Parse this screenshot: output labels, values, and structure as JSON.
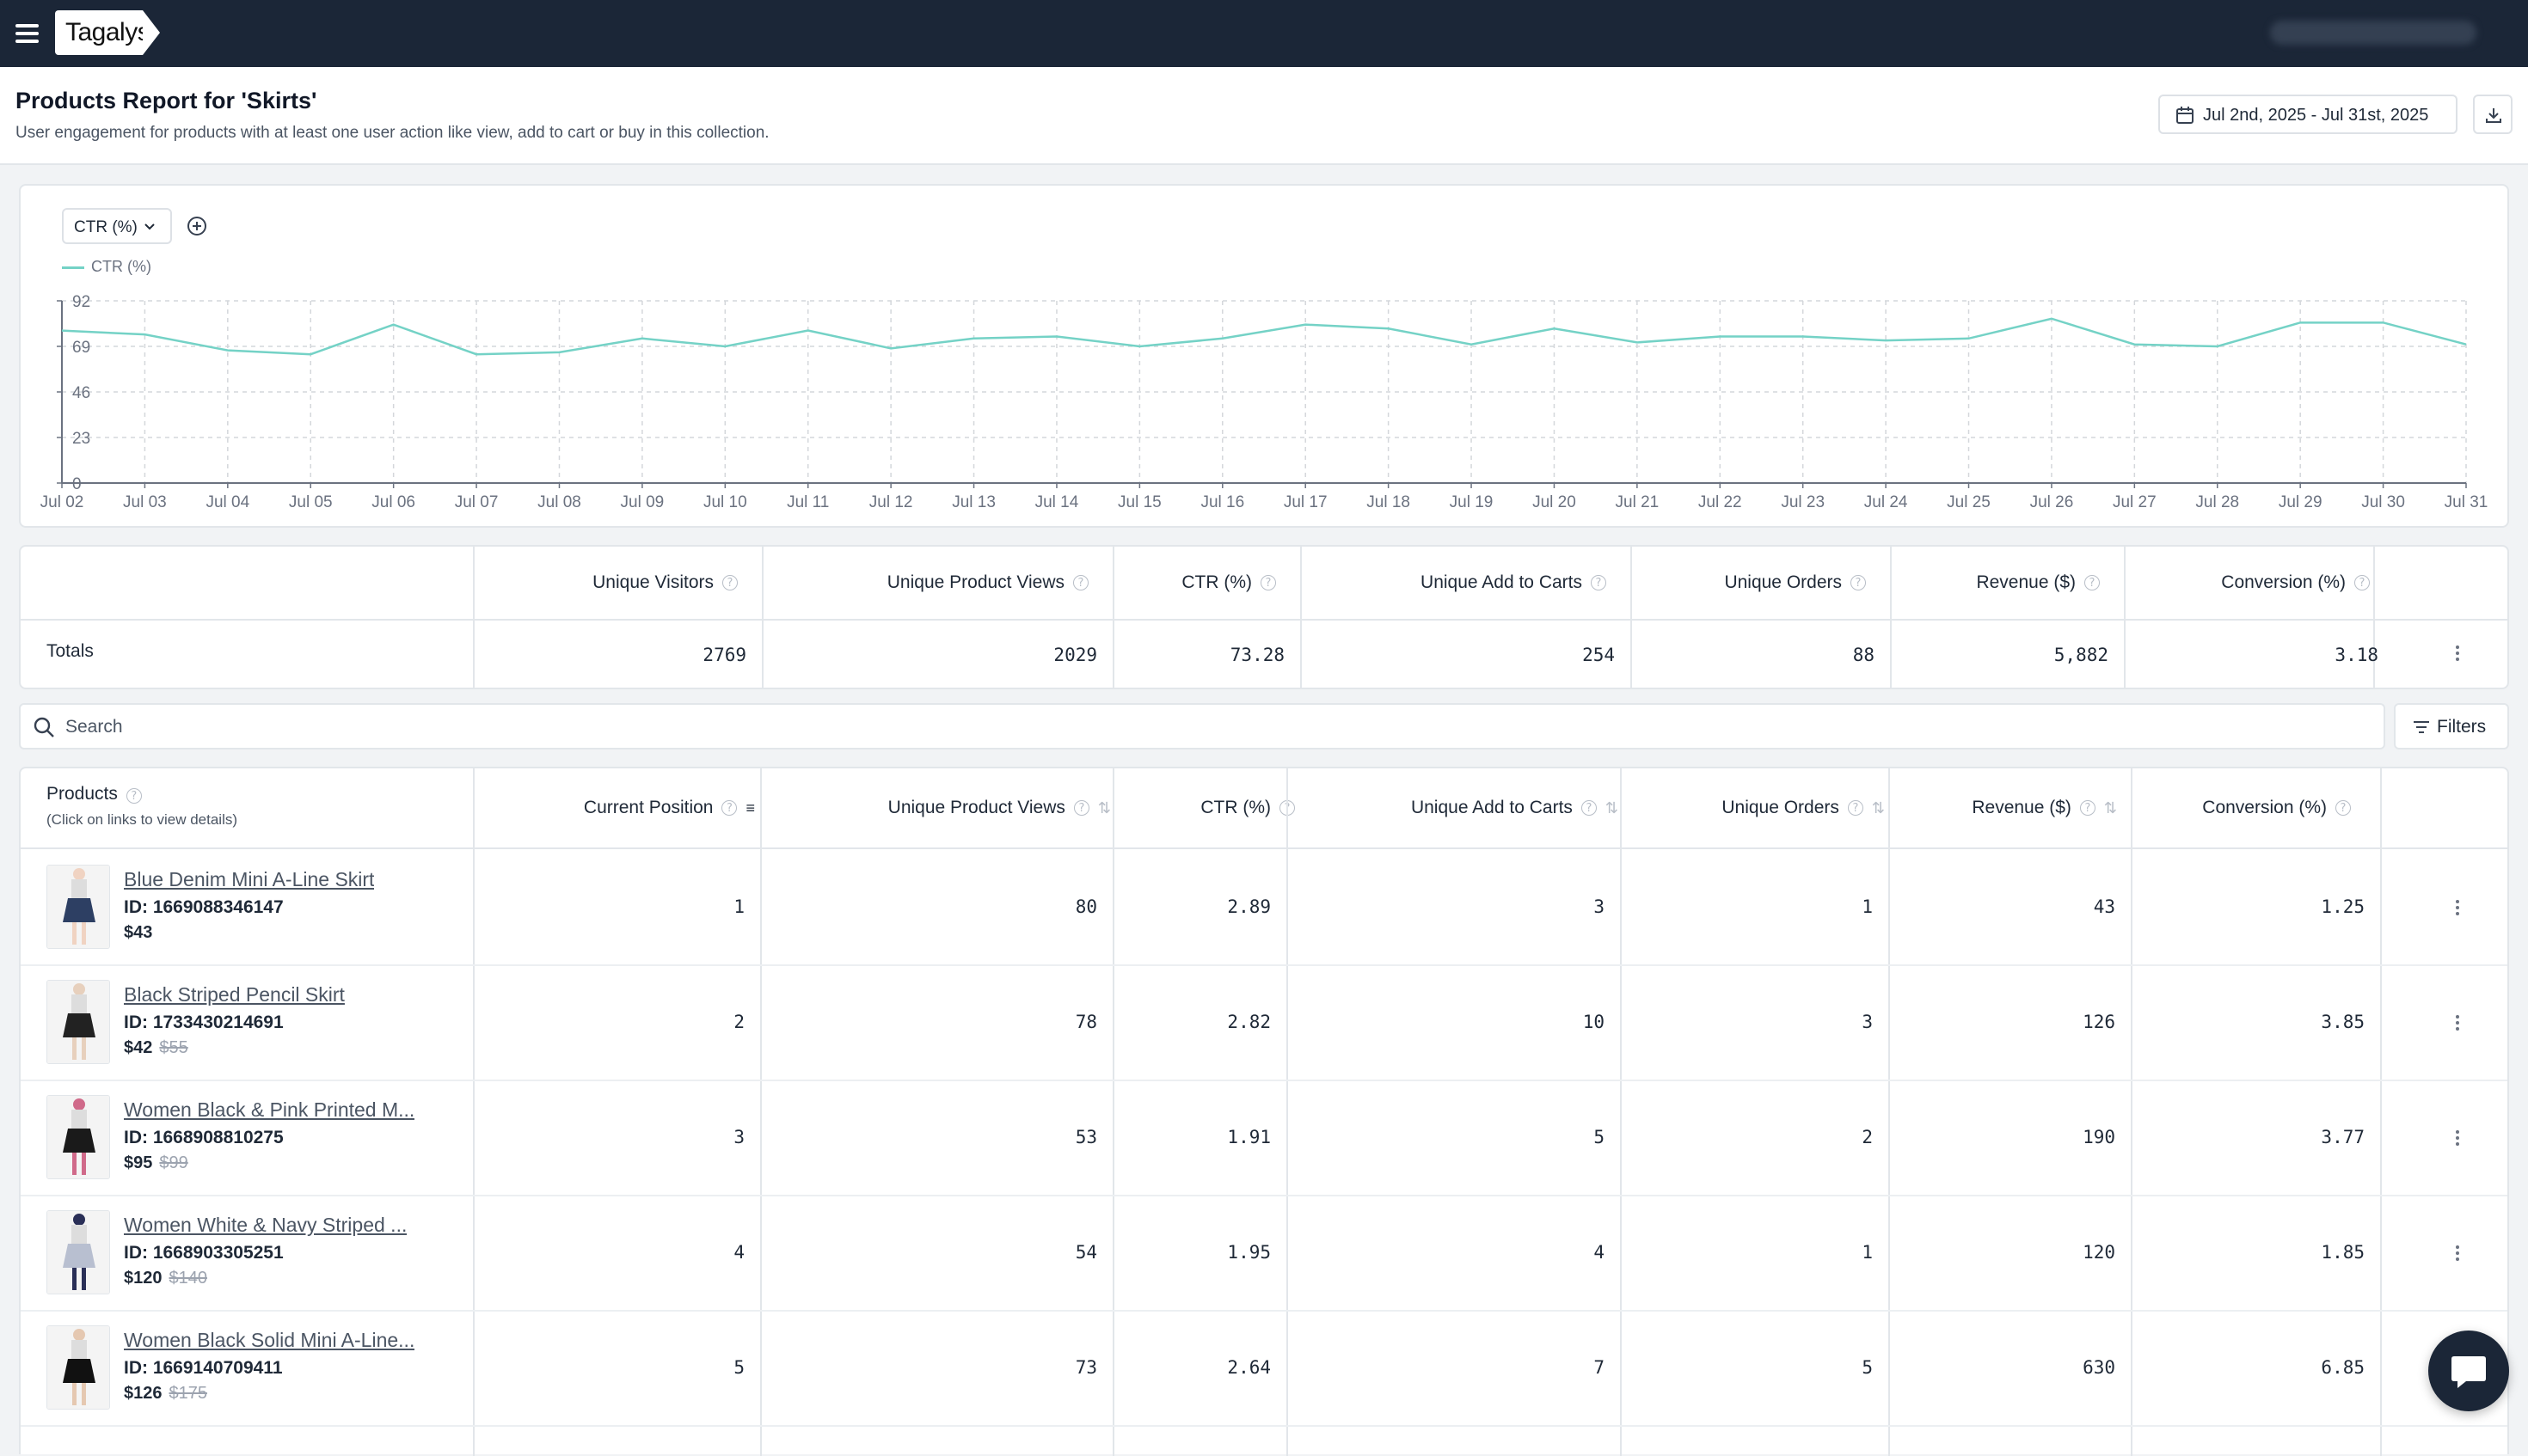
{
  "header": {
    "logo": "Tagalys"
  },
  "page": {
    "title": "Products Report for 'Skirts'",
    "subtitle": "User engagement for products with at least one user action like view, add to cart or buy in this collection.",
    "date_range": "Jul 2nd, 2025 - Jul 31st, 2025"
  },
  "chart": {
    "metric_select": "CTR (%)",
    "legend": "CTR (%)",
    "line_color": "#74d2c6"
  },
  "chart_data": {
    "type": "line",
    "categories": [
      "Jul 02",
      "Jul 03",
      "Jul 04",
      "Jul 05",
      "Jul 06",
      "Jul 07",
      "Jul 08",
      "Jul 09",
      "Jul 10",
      "Jul 11",
      "Jul 12",
      "Jul 13",
      "Jul 14",
      "Jul 15",
      "Jul 16",
      "Jul 17",
      "Jul 18",
      "Jul 19",
      "Jul 20",
      "Jul 21",
      "Jul 22",
      "Jul 23",
      "Jul 24",
      "Jul 25",
      "Jul 26",
      "Jul 27",
      "Jul 28",
      "Jul 29",
      "Jul 30",
      "Jul 31"
    ],
    "series": [
      {
        "name": "CTR (%)",
        "values": [
          77,
          75,
          67,
          65,
          80,
          65,
          66,
          73,
          69,
          77,
          68,
          73,
          74,
          69,
          73,
          80,
          78,
          70,
          78,
          71,
          74,
          74,
          72,
          73,
          83,
          70,
          69,
          81,
          81,
          70
        ]
      }
    ],
    "ylim": [
      0,
      92
    ],
    "yticks": [
      0,
      23,
      46,
      69,
      92
    ],
    "grid": true
  },
  "totals": {
    "headers": [
      "Unique Visitors",
      "Unique Product Views",
      "CTR (%)",
      "Unique Add to Carts",
      "Unique Orders",
      "Revenue ($)",
      "Conversion (%)"
    ],
    "label": "Totals",
    "values": [
      "2769",
      "2029",
      "73.28",
      "254",
      "88",
      "5,882",
      "3.18"
    ]
  },
  "search": {
    "placeholder": "Search",
    "value": ""
  },
  "filters_label": "Filters",
  "products": {
    "header_title": "Products",
    "header_sub": "(Click on links to view details)",
    "headers": [
      "Current Position",
      "Unique Product Views",
      "CTR (%)",
      "Unique Add to Carts",
      "Unique Orders",
      "Revenue ($)",
      "Conversion (%)"
    ],
    "rows": [
      {
        "name": "Blue Denim Mini A-Line Skirt",
        "id": "ID: 1669088346147",
        "price": "$43",
        "old_price": "",
        "position": "1",
        "views": "80",
        "ctr": "2.89",
        "atc": "3",
        "orders": "1",
        "revenue": "43",
        "conversion": "1.25"
      },
      {
        "name": "Black Striped Pencil Skirt",
        "id": "ID: 1733430214691",
        "price": "$42",
        "old_price": "$55",
        "position": "2",
        "views": "78",
        "ctr": "2.82",
        "atc": "10",
        "orders": "3",
        "revenue": "126",
        "conversion": "3.85"
      },
      {
        "name": "Women Black & Pink Printed M...",
        "id": "ID: 1668908810275",
        "price": "$95",
        "old_price": "$99",
        "position": "3",
        "views": "53",
        "ctr": "1.91",
        "atc": "5",
        "orders": "2",
        "revenue": "190",
        "conversion": "3.77"
      },
      {
        "name": "Women White & Navy Striped ...",
        "id": "ID: 1668903305251",
        "price": "$120",
        "old_price": "$140",
        "position": "4",
        "views": "54",
        "ctr": "1.95",
        "atc": "4",
        "orders": "1",
        "revenue": "120",
        "conversion": "1.85"
      },
      {
        "name": "Women Black Solid Mini A-Line...",
        "id": "ID: 1669140709411",
        "price": "$126",
        "old_price": "$175",
        "position": "5",
        "views": "73",
        "ctr": "2.64",
        "atc": "7",
        "orders": "5",
        "revenue": "630",
        "conversion": "6.85"
      }
    ]
  }
}
